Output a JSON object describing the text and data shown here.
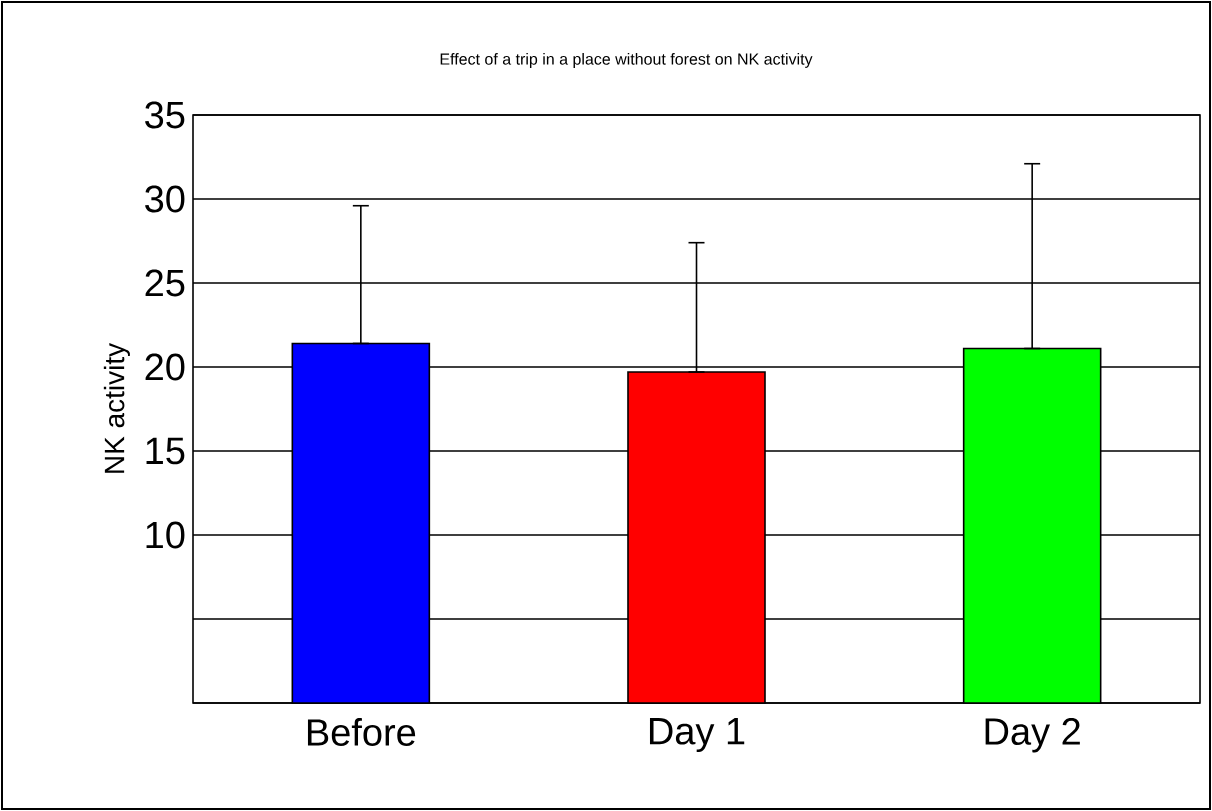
{
  "chart_data": {
    "type": "bar",
    "title": "Effect of a trip in a place without forest on NK activity",
    "ylabel": "NK activity",
    "categories": [
      "Before",
      "Day 1",
      "Day 2"
    ],
    "values": [
      21.4,
      19.7,
      21.1
    ],
    "colors": [
      "#0000ff",
      "#ff0000",
      "#00ff00"
    ],
    "errors": [
      [
        21.4,
        29.6
      ],
      [
        19.7,
        27.4
      ],
      [
        21.1,
        32.1
      ]
    ],
    "ylim": [
      0,
      35
    ],
    "yticks": [
      {
        "value": 0,
        "label": null
      },
      {
        "value": 5,
        "label": null
      },
      10,
      15,
      20,
      25,
      30,
      35
    ],
    "grid": "y"
  }
}
